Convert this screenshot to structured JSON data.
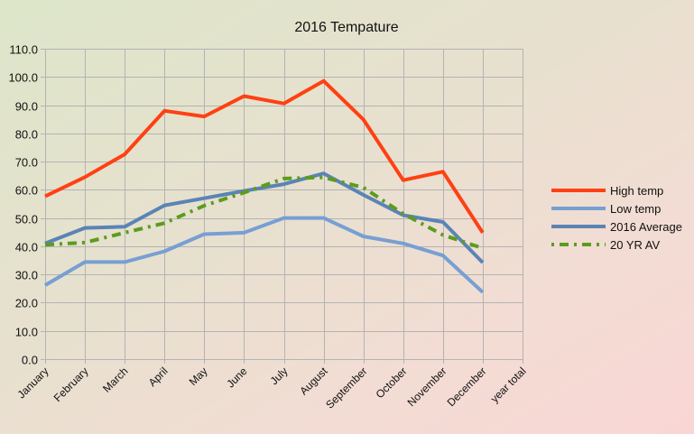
{
  "chart_data": {
    "type": "line",
    "title": "2016 Tempature",
    "xlabel": "",
    "ylabel": "",
    "ylim": [
      0,
      110
    ],
    "y_step": 10,
    "y_tick_labels": [
      "0.0",
      "10.0",
      "20.0",
      "30.0",
      "40.0",
      "50.0",
      "60.0",
      "70.0",
      "80.0",
      "90.0",
      "100.0",
      "110.0"
    ],
    "grid": true,
    "legend_position": "right",
    "categories": [
      "January",
      "February",
      "March",
      "April",
      "May",
      "June",
      "July",
      "August",
      "September",
      "October",
      "November",
      "December",
      "year total"
    ],
    "series": [
      {
        "name": "High temp",
        "color": "#ff4013",
        "style": "solid",
        "values": [
          57.7,
          64.5,
          72.6,
          88.0,
          86.0,
          93.2,
          90.6,
          98.6,
          84.9,
          63.4,
          66.4,
          44.8,
          null
        ]
      },
      {
        "name": "Low temp",
        "color": "#779fd3",
        "style": "solid",
        "values": [
          26.2,
          34.4,
          34.4,
          38.2,
          44.3,
          44.8,
          50.0,
          50.0,
          43.5,
          41.0,
          36.7,
          23.7,
          null
        ]
      },
      {
        "name": "2016 Average",
        "color": "#5a84b5",
        "style": "solid",
        "values": [
          41.0,
          46.5,
          46.9,
          54.5,
          57.0,
          59.6,
          62.0,
          65.8,
          58.2,
          51.0,
          48.6,
          34.2,
          null
        ]
      },
      {
        "name": "20 YR AV",
        "color": "#5c9c1d",
        "style": "dash-dot",
        "values": [
          40.5,
          41.3,
          44.8,
          48.2,
          54.4,
          59.0,
          64.0,
          64.4,
          60.8,
          51.5,
          44.0,
          39.3,
          null
        ]
      }
    ]
  }
}
